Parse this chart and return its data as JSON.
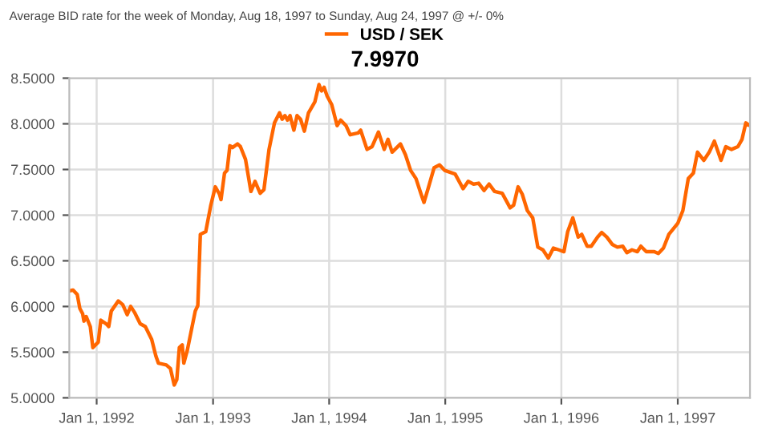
{
  "chart_data": {
    "type": "line",
    "title": "Average BID rate for the week of Monday, Aug 18, 1997 to Sunday, Aug 24, 1997 @ +/- 0%",
    "subtitle": "7.9970",
    "x": [
      "1991-10-07",
      "1991-10-19",
      "1991-11-01",
      "1991-11-09",
      "1991-11-18",
      "1991-11-22",
      "1991-11-29",
      "1991-12-12",
      "1991-12-20",
      "1992-01-06",
      "1992-01-14",
      "1992-01-31",
      "1992-02-08",
      "1992-02-16",
      "1992-03-09",
      "1992-03-23",
      "1992-04-06",
      "1992-04-17",
      "1992-04-30",
      "1992-05-17",
      "1992-06-02",
      "1992-06-22",
      "1992-07-05",
      "1992-07-13",
      "1992-08-07",
      "1992-08-20",
      "1992-09-01",
      "1992-09-09",
      "1992-09-17",
      "1992-09-26",
      "1992-10-01",
      "1992-10-12",
      "1992-11-06",
      "1992-11-14",
      "1992-11-22",
      "1992-12-09",
      "1992-12-25",
      "1993-01-08",
      "1993-01-21",
      "1993-01-26",
      "1993-02-06",
      "1993-02-14",
      "1993-02-23",
      "1993-03-03",
      "1993-03-19",
      "1993-03-28",
      "1993-04-13",
      "1993-04-30",
      "1993-05-13",
      "1993-05-29",
      "1993-06-10",
      "1993-06-26",
      "1993-07-13",
      "1993-07-29",
      "1993-08-06",
      "1993-08-15",
      "1993-08-23",
      "1993-08-31",
      "1993-09-12",
      "1993-09-22",
      "1993-10-03",
      "1993-10-15",
      "1993-10-28",
      "1993-11-17",
      "1993-11-30",
      "1993-12-08",
      "1993-12-16",
      "1993-12-26",
      "1994-01-09",
      "1994-01-26",
      "1994-02-06",
      "1994-02-23",
      "1994-03-08",
      "1994-04-02",
      "1994-04-10",
      "1994-04-30",
      "1994-05-16",
      "1994-06-05",
      "1994-06-23",
      "1994-07-05",
      "1994-07-18",
      "1994-08-13",
      "1994-08-29",
      "1994-09-14",
      "1994-10-01",
      "1994-10-17",
      "1994-10-26",
      "1994-11-08",
      "1994-11-27",
      "1994-12-14",
      "1994-12-30",
      "1995-02-01",
      "1995-02-26",
      "1995-03-14",
      "1995-03-31",
      "1995-04-16",
      "1995-05-03",
      "1995-05-19",
      "1995-06-05",
      "1995-06-29",
      "1995-07-24",
      "1995-08-04",
      "1995-08-18",
      "1995-08-31",
      "1995-09-16",
      "1995-10-03",
      "1995-10-19",
      "1995-11-04",
      "1995-11-21",
      "1995-12-07",
      "1995-12-24",
      "1996-01-09",
      "1996-01-21",
      "1996-02-06",
      "1996-02-23",
      "1996-03-05",
      "1996-03-22",
      "1996-04-04",
      "1996-04-24",
      "1996-05-07",
      "1996-05-23",
      "1996-06-09",
      "1996-06-25",
      "1996-07-12",
      "1996-07-25",
      "1996-08-10",
      "1996-08-27",
      "1996-09-07",
      "1996-09-24",
      "1996-10-19",
      "1996-11-01",
      "1996-11-17",
      "1996-12-04",
      "1997-01-01",
      "1997-01-17",
      "1997-02-03",
      "1997-02-19",
      "1997-03-04",
      "1997-03-24",
      "1997-04-10",
      "1997-04-26",
      "1997-05-08",
      "1997-05-17",
      "1997-06-01",
      "1997-06-19",
      "1997-07-09",
      "1997-07-22",
      "1997-08-03",
      "1997-08-11"
    ],
    "series": [
      {
        "name": "USD / SEK",
        "color": "#ff6600",
        "values": [
          6.17,
          6.18,
          6.13,
          5.98,
          5.92,
          5.84,
          5.89,
          5.78,
          5.55,
          5.61,
          5.85,
          5.81,
          5.78,
          5.95,
          6.06,
          6.02,
          5.91,
          6.0,
          5.93,
          5.81,
          5.78,
          5.64,
          5.46,
          5.38,
          5.36,
          5.32,
          5.14,
          5.2,
          5.55,
          5.58,
          5.38,
          5.52,
          5.95,
          6.01,
          6.79,
          6.82,
          7.11,
          7.31,
          7.23,
          7.17,
          7.46,
          7.49,
          7.76,
          7.74,
          7.78,
          7.75,
          7.61,
          7.26,
          7.37,
          7.24,
          7.28,
          7.72,
          8.01,
          8.12,
          8.05,
          8.09,
          8.04,
          8.09,
          7.93,
          8.09,
          8.05,
          7.92,
          8.12,
          8.24,
          8.43,
          8.36,
          8.4,
          8.3,
          8.21,
          7.98,
          8.04,
          7.98,
          7.88,
          7.9,
          7.93,
          7.72,
          7.75,
          7.91,
          7.72,
          7.83,
          7.69,
          7.78,
          7.66,
          7.49,
          7.4,
          7.23,
          7.14,
          7.29,
          7.52,
          7.55,
          7.49,
          7.45,
          7.29,
          7.37,
          7.34,
          7.35,
          7.27,
          7.34,
          7.26,
          7.24,
          7.08,
          7.11,
          7.31,
          7.23,
          7.05,
          6.97,
          6.65,
          6.62,
          6.53,
          6.64,
          6.62,
          6.6,
          6.82,
          6.97,
          6.76,
          6.79,
          6.66,
          6.66,
          6.76,
          6.81,
          6.76,
          6.68,
          6.65,
          6.66,
          6.59,
          6.62,
          6.6,
          6.66,
          6.6,
          6.6,
          6.58,
          6.64,
          6.79,
          6.91,
          7.05,
          7.4,
          7.46,
          7.69,
          7.6,
          7.69,
          7.81,
          7.69,
          7.6,
          7.75,
          7.72,
          7.75,
          7.83,
          8.01,
          7.99
        ]
      }
    ],
    "xlim": [
      "1991-10-07",
      "1997-08-16"
    ],
    "xticks": [
      {
        "value": "1992-01-01",
        "label": "Jan 1, 1992"
      },
      {
        "value": "1993-01-01",
        "label": "Jan 1, 1993"
      },
      {
        "value": "1994-01-01",
        "label": "Jan 1, 1994"
      },
      {
        "value": "1995-01-01",
        "label": "Jan 1, 1995"
      },
      {
        "value": "1996-01-01",
        "label": "Jan 1, 1996"
      },
      {
        "value": "1997-01-01",
        "label": "Jan 1, 1997"
      }
    ],
    "ylim": [
      5.0,
      8.5
    ],
    "yticks": [
      {
        "value": 5.0,
        "label": "5.0000"
      },
      {
        "value": 5.5,
        "label": "5.5000"
      },
      {
        "value": 6.0,
        "label": "6.0000"
      },
      {
        "value": 6.5,
        "label": "6.5000"
      },
      {
        "value": 7.0,
        "label": "7.0000"
      },
      {
        "value": 7.5,
        "label": "7.5000"
      },
      {
        "value": 8.0,
        "label": "8.0000"
      },
      {
        "value": 8.5,
        "label": "8.5000"
      }
    ],
    "grid": true,
    "legend": "top",
    "marker": "none",
    "line_style": "solid"
  }
}
